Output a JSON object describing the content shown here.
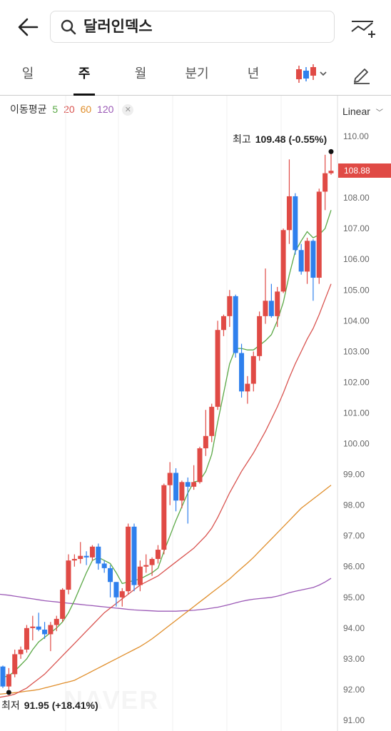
{
  "header": {
    "back_icon": "arrow-left-icon",
    "search_icon": "search-icon",
    "search_text": "달러인덱스",
    "add_chart_icon": "chart-compare-add-icon"
  },
  "tabs": [
    {
      "label": "일",
      "active": false
    },
    {
      "label": "주",
      "active": true
    },
    {
      "label": "월",
      "active": false
    },
    {
      "label": "분기",
      "active": false
    },
    {
      "label": "년",
      "active": false
    }
  ],
  "toolbar": {
    "chart_type_icon": "candlestick-icon",
    "draw_icon": "pencil-icon"
  },
  "ma_legend": {
    "title": "이동평균",
    "periods": [
      {
        "label": "5",
        "color": "#5aa845"
      },
      {
        "label": "20",
        "color": "#d9534f"
      },
      {
        "label": "60",
        "color": "#e08e2b"
      },
      {
        "label": "120",
        "color": "#9b59b6"
      }
    ],
    "close_icon": "close-icon"
  },
  "scale_selector": {
    "label": "Linear"
  },
  "high_label": {
    "key": "최고",
    "value": "109.48 (-0.55%)"
  },
  "low_label": {
    "key": "최저",
    "value": "91.95 (+18.41%)"
  },
  "current_price_tag": "108.88",
  "watermark": "NAVER",
  "colors": {
    "up": "#e04a45",
    "down": "#2f80ed"
  },
  "chart_data": {
    "type": "candlestick",
    "ylim": [
      91.0,
      110.0
    ],
    "yticks": [
      "110.00",
      "109.00",
      "108.00",
      "107.00",
      "106.00",
      "105.00",
      "104.00",
      "103.00",
      "102.00",
      "101.00",
      "100.00",
      "99.00",
      "98.00",
      "97.00",
      "96.00",
      "95.00",
      "94.00",
      "93.00",
      "92.00",
      "91.00"
    ],
    "candles": [
      [
        92.75,
        92.78,
        92.05,
        92.1
      ],
      [
        92.1,
        92.7,
        92.0,
        92.5
      ],
      [
        92.5,
        93.3,
        92.4,
        93.15
      ],
      [
        93.15,
        93.4,
        93.0,
        93.3
      ],
      [
        93.3,
        94.1,
        93.2,
        94.0
      ],
      [
        94.0,
        94.4,
        93.6,
        94.05
      ],
      [
        94.05,
        94.5,
        93.9,
        93.95
      ],
      [
        93.95,
        94.2,
        93.65,
        93.8
      ],
      [
        93.8,
        94.2,
        93.25,
        94.1
      ],
      [
        94.1,
        94.4,
        93.9,
        94.3
      ],
      [
        94.3,
        95.3,
        94.2,
        95.25
      ],
      [
        95.25,
        96.4,
        95.1,
        96.2
      ],
      [
        96.2,
        96.4,
        96.0,
        96.25
      ],
      [
        96.25,
        96.8,
        96.1,
        96.35
      ],
      [
        96.35,
        96.5,
        96.05,
        96.3
      ],
      [
        96.3,
        96.7,
        96.2,
        96.65
      ],
      [
        96.65,
        96.75,
        95.9,
        96.1
      ],
      [
        96.1,
        96.2,
        95.8,
        95.95
      ],
      [
        95.95,
        96.05,
        95.0,
        95.5
      ],
      [
        95.5,
        95.5,
        94.7,
        95.0
      ],
      [
        95.0,
        95.3,
        94.7,
        95.2
      ],
      [
        95.2,
        97.4,
        95.1,
        97.3
      ],
      [
        97.3,
        97.4,
        95.2,
        95.4
      ],
      [
        95.4,
        96.2,
        95.2,
        96.0
      ],
      [
        96.0,
        96.4,
        95.8,
        96.05
      ],
      [
        96.05,
        96.3,
        95.7,
        96.25
      ],
      [
        96.25,
        96.7,
        96.1,
        96.55
      ],
      [
        96.55,
        98.7,
        96.4,
        98.65
      ],
      [
        98.65,
        99.4,
        98.0,
        99.05
      ],
      [
        99.05,
        99.2,
        97.8,
        98.15
      ],
      [
        98.15,
        98.8,
        97.9,
        98.75
      ],
      [
        98.75,
        98.9,
        97.4,
        98.6
      ],
      [
        98.6,
        99.3,
        98.5,
        98.75
      ],
      [
        98.75,
        99.9,
        98.7,
        99.85
      ],
      [
        99.85,
        101.1,
        99.6,
        100.25
      ],
      [
        100.25,
        101.3,
        100.05,
        101.2
      ],
      [
        101.2,
        104.0,
        101.1,
        103.7
      ],
      [
        103.7,
        104.2,
        103.5,
        104.15
      ],
      [
        104.15,
        105.0,
        103.8,
        104.8
      ],
      [
        104.8,
        104.85,
        102.8,
        102.95
      ],
      [
        102.95,
        103.25,
        101.5,
        101.7
      ],
      [
        101.7,
        102.2,
        101.3,
        101.95
      ],
      [
        101.95,
        103.0,
        101.7,
        102.85
      ],
      [
        102.85,
        104.3,
        102.7,
        104.15
      ],
      [
        104.15,
        105.7,
        103.9,
        104.65
      ],
      [
        104.65,
        105.2,
        104.1,
        104.15
      ],
      [
        104.15,
        105.1,
        103.8,
        104.95
      ],
      [
        104.95,
        107.0,
        104.9,
        106.95
      ],
      [
        106.95,
        109.25,
        106.5,
        108.05
      ],
      [
        108.05,
        108.15,
        106.15,
        106.3
      ],
      [
        106.3,
        106.5,
        105.5,
        105.6
      ],
      [
        105.6,
        106.7,
        105.2,
        106.6
      ],
      [
        106.6,
        106.65,
        104.65,
        105.4
      ],
      [
        105.4,
        108.3,
        105.2,
        108.2
      ],
      [
        108.2,
        109.4,
        107.6,
        108.8
      ],
      [
        108.8,
        109.48,
        108.75,
        108.88
      ]
    ],
    "ma5": [
      92.4,
      92.45,
      92.6,
      92.8,
      93.0,
      93.3,
      93.55,
      93.7,
      93.85,
      94.0,
      94.2,
      94.5,
      94.9,
      95.35,
      95.8,
      96.2,
      96.3,
      96.2,
      96.1,
      95.8,
      95.45,
      95.5,
      95.55,
      95.6,
      95.7,
      95.8,
      95.95,
      96.5,
      97.0,
      97.5,
      97.95,
      98.4,
      98.75,
      98.8,
      99.1,
      99.65,
      100.7,
      101.65,
      102.6,
      103.1,
      103.1,
      103.05,
      103.05,
      103.2,
      103.35,
      103.55,
      104.0,
      104.6,
      105.5,
      106.25,
      106.6,
      106.9,
      106.7,
      106.8,
      107.0,
      107.6
    ],
    "ma20": [
      91.75,
      91.8,
      91.85,
      91.95,
      92.05,
      92.2,
      92.35,
      92.5,
      92.7,
      92.9,
      93.1,
      93.3,
      93.5,
      93.7,
      93.9,
      94.1,
      94.3,
      94.5,
      94.65,
      94.8,
      94.95,
      95.1,
      95.25,
      95.4,
      95.5,
      95.6,
      95.7,
      95.85,
      96.0,
      96.15,
      96.3,
      96.45,
      96.6,
      96.8,
      97.0,
      97.25,
      97.6,
      98.0,
      98.4,
      98.75,
      99.1,
      99.4,
      99.7,
      100.05,
      100.4,
      100.8,
      101.2,
      101.65,
      102.15,
      102.6,
      103.0,
      103.4,
      103.75,
      104.2,
      104.7,
      105.2
    ],
    "ma60": [
      91.85,
      91.88,
      91.9,
      91.92,
      91.95,
      91.97,
      92.0,
      92.05,
      92.1,
      92.15,
      92.2,
      92.25,
      92.3,
      92.4,
      92.5,
      92.6,
      92.7,
      92.8,
      92.9,
      93.0,
      93.1,
      93.2,
      93.3,
      93.4,
      93.52,
      93.65,
      93.8,
      93.95,
      94.1,
      94.25,
      94.4,
      94.55,
      94.7,
      94.85,
      95.0,
      95.15,
      95.3,
      95.45,
      95.6,
      95.78,
      95.95,
      96.12,
      96.3,
      96.5,
      96.7,
      96.9,
      97.1,
      97.3,
      97.5,
      97.7,
      97.9,
      98.05,
      98.2,
      98.35,
      98.5,
      98.65
    ],
    "ma120": [
      95.1,
      95.07,
      95.04,
      95.01,
      94.98,
      94.95,
      94.92,
      94.89,
      94.87,
      94.85,
      94.83,
      94.81,
      94.79,
      94.77,
      94.75,
      94.73,
      94.71,
      94.69,
      94.67,
      94.65,
      94.63,
      94.61,
      94.59,
      94.58,
      94.57,
      94.56,
      94.55,
      94.55,
      94.55,
      94.55,
      94.56,
      94.57,
      94.58,
      94.6,
      94.62,
      94.65,
      94.68,
      94.72,
      94.77,
      94.82,
      94.87,
      94.91,
      94.94,
      94.96,
      94.98,
      95.0,
      95.04,
      95.09,
      95.15,
      95.2,
      95.24,
      95.28,
      95.32,
      95.4,
      95.5,
      95.62
    ]
  }
}
